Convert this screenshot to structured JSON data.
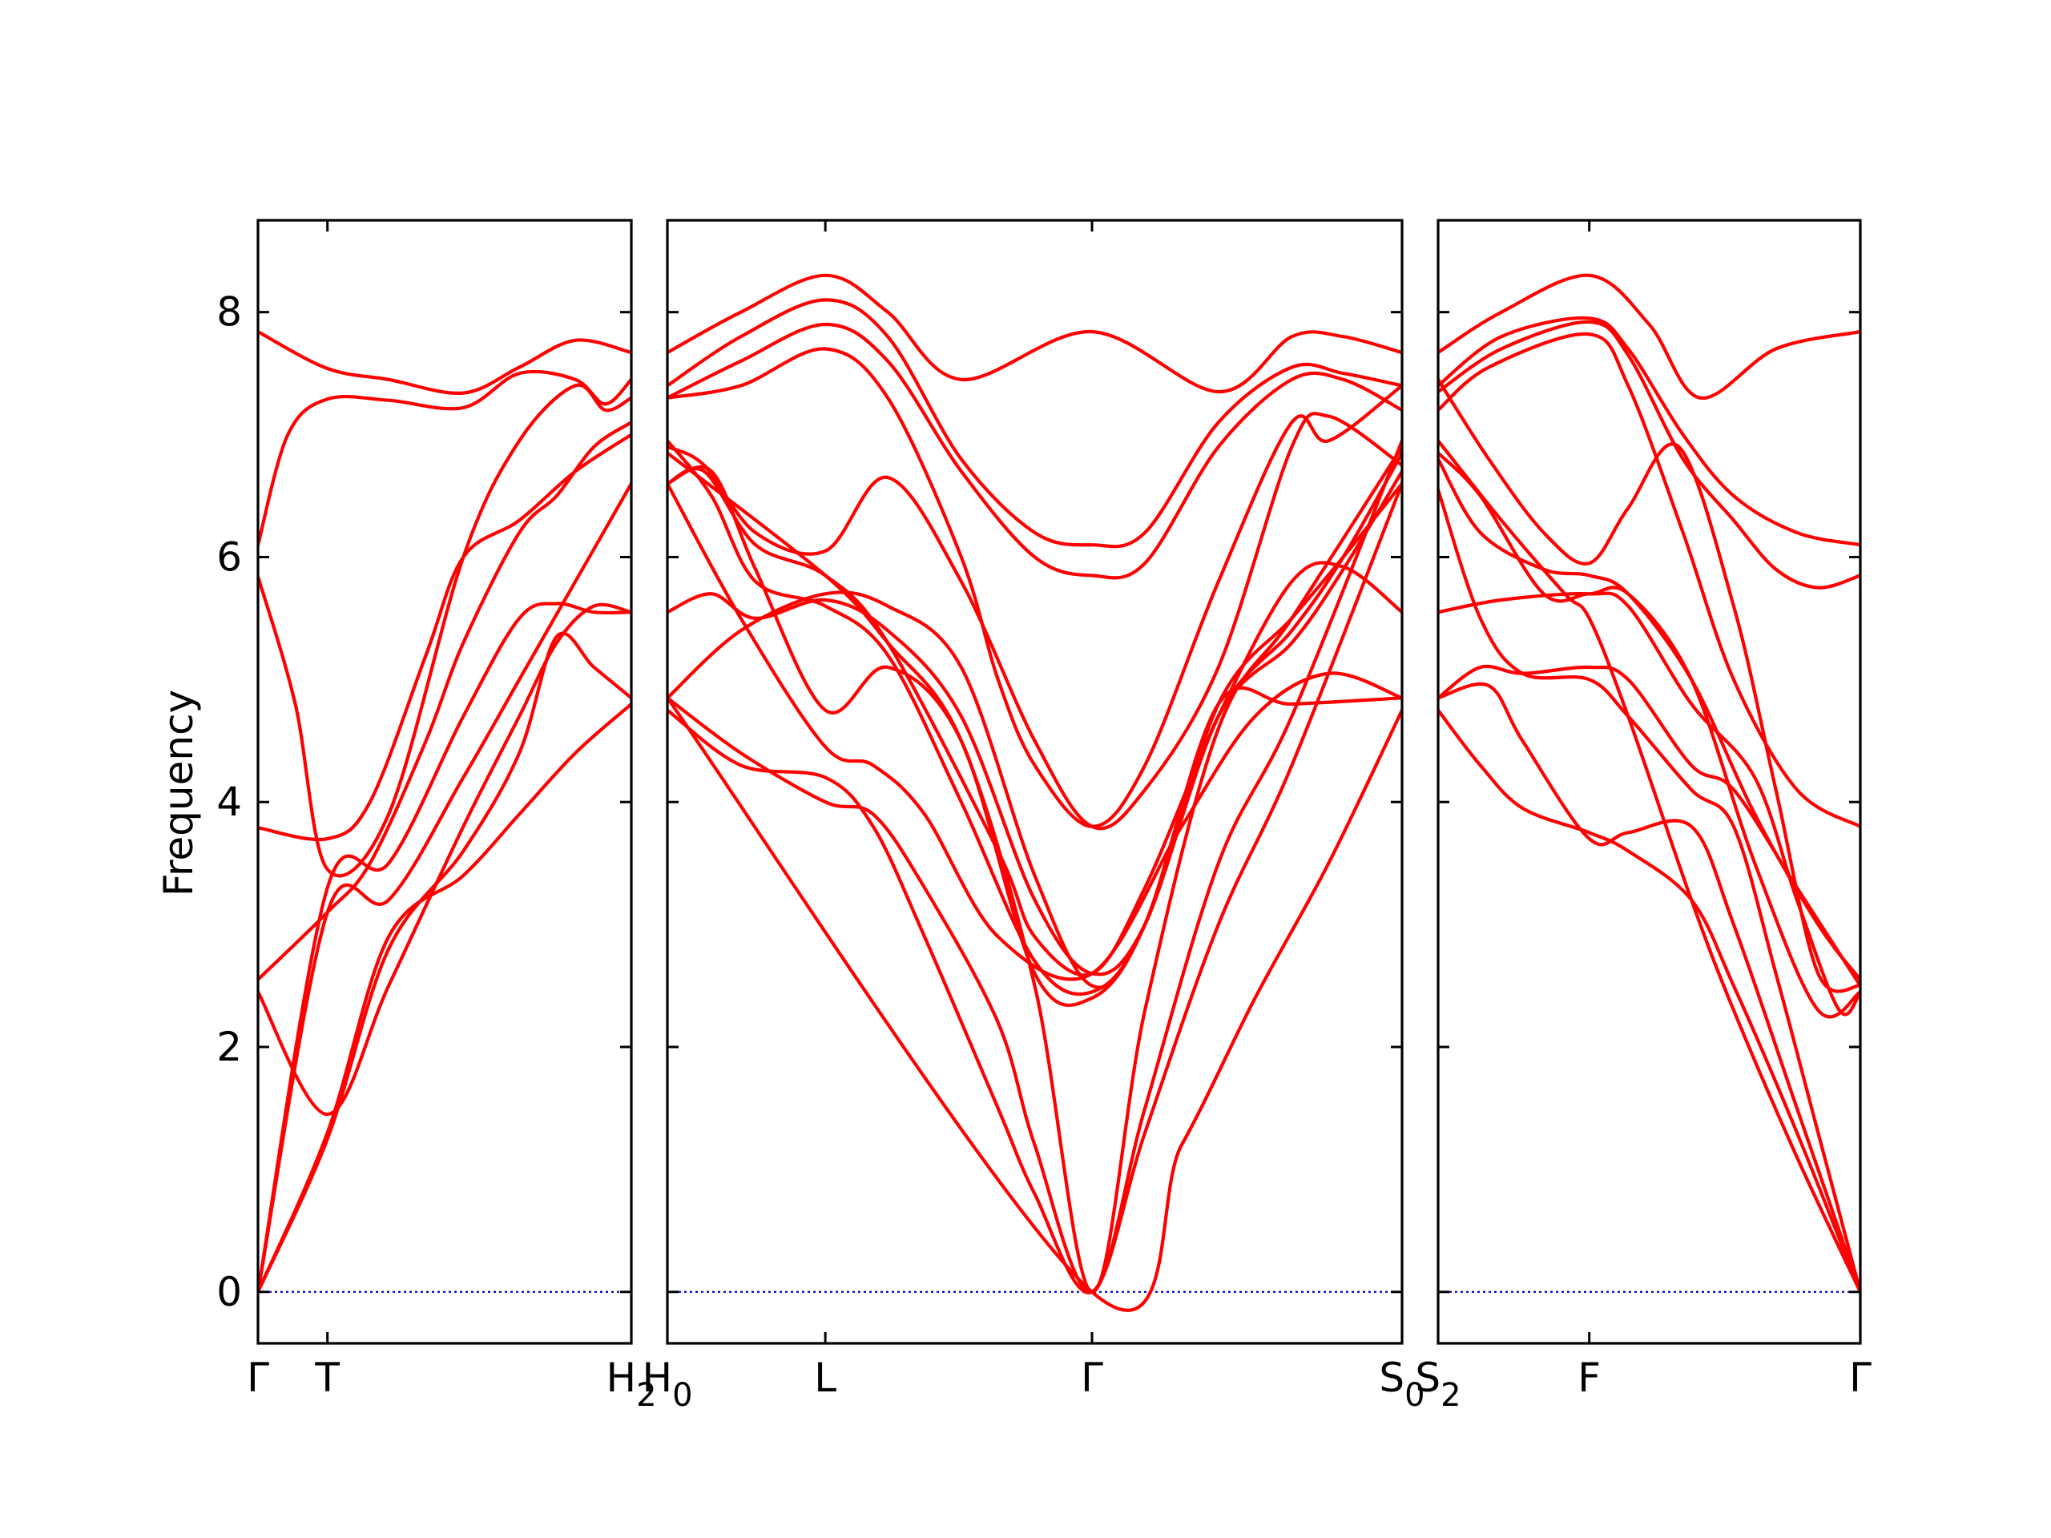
{
  "chart_data": {
    "type": "line",
    "ylabel": "Frequency",
    "ylim": [
      -0.42,
      8.75
    ],
    "yticks": [
      0,
      2,
      4,
      6,
      8
    ],
    "ytick_labels": [
      "0",
      "2",
      "4",
      "6",
      "8"
    ],
    "colors": {
      "bands": "#ff0000",
      "zero_line": "#0000cc",
      "frame": "#000000"
    },
    "zero_line": true,
    "panels": [
      {
        "id": "panel-1",
        "xlim": [
          0,
          1
        ],
        "ticks": [
          {
            "pos": 0,
            "base": "Γ",
            "sub": ""
          },
          {
            "pos": 0.186,
            "base": "T",
            "sub": ""
          },
          {
            "pos": 1,
            "base": "H",
            "sub": "2"
          }
        ],
        "series": [
          {
            "x": [
              0,
              0.186,
              0.35,
              0.55,
              0.7,
              0.85,
              1
            ],
            "y": [
              7.84,
              7.54,
              7.45,
              7.34,
              7.55,
              7.77,
              7.67
            ]
          },
          {
            "x": [
              0,
              0.08,
              0.186,
              0.35,
              0.55,
              0.7,
              0.85,
              0.93,
              1
            ],
            "y": [
              6.1,
              7.0,
              7.29,
              7.28,
              7.22,
              7.5,
              7.45,
              7.25,
              7.45
            ]
          },
          {
            "x": [
              0,
              0.1,
              0.186,
              0.35,
              0.55,
              0.7,
              0.85,
              0.93,
              1
            ],
            "y": [
              5.84,
              4.8,
              3.45,
              3.9,
              6.0,
              6.95,
              7.4,
              7.2,
              7.3
            ]
          },
          {
            "x": [
              0,
              0.186,
              0.3,
              0.45,
              0.55,
              0.7,
              0.85,
              1
            ],
            "y": [
              3.79,
              3.7,
              4.0,
              5.2,
              6.0,
              6.3,
              6.7,
              7.0
            ]
          },
          {
            "x": [
              0,
              0.186,
              0.3,
              0.45,
              0.55,
              0.7,
              0.8,
              0.9,
              1
            ],
            "y": [
              2.55,
              3.1,
              3.5,
              4.5,
              5.3,
              6.2,
              6.5,
              6.9,
              7.1
            ]
          },
          {
            "x": [
              0,
              0.186,
              0.35,
              0.55,
              0.7,
              0.8,
              0.9,
              1
            ],
            "y": [
              2.45,
              1.45,
              2.5,
              3.8,
              4.7,
              5.3,
              5.6,
              5.55
            ]
          },
          {
            "x": [
              0,
              0.186,
              0.35,
              0.55,
              0.7,
              0.8,
              0.9,
              1
            ],
            "y": [
              0,
              3.3,
              3.5,
              4.7,
              5.5,
              5.62,
              5.55,
              5.55
            ]
          },
          {
            "x": [
              0,
              0.186,
              0.35,
              0.55,
              0.7,
              0.8,
              0.9,
              1
            ],
            "y": [
              0,
              1.25,
              2.8,
              3.6,
              4.4,
              5.35,
              5.1,
              4.85
            ]
          },
          {
            "x": [
              0,
              0.186,
              0.35,
              0.55,
              0.7,
              0.85,
              1
            ],
            "y": [
              0,
              1.3,
              2.9,
              3.4,
              3.9,
              4.4,
              4.8
            ]
          },
          {
            "x": [
              0,
              0.186,
              0.35,
              0.55,
              0.7,
              0.85,
              1
            ],
            "y": [
              0,
              3.1,
              3.2,
              4.2,
              5.0,
              5.8,
              6.6
            ]
          }
        ]
      },
      {
        "id": "panel-2",
        "xlim": [
          0,
          1
        ],
        "ticks": [
          {
            "pos": 0,
            "base": "H",
            "sub": "0"
          },
          {
            "pos": 0.215,
            "base": "L",
            "sub": ""
          },
          {
            "pos": 0.578,
            "base": "Γ",
            "sub": ""
          },
          {
            "pos": 1,
            "base": "S",
            "sub": "0"
          }
        ],
        "series": [
          {
            "x": [
              0,
              0.1,
              0.215,
              0.3,
              0.4,
              0.578,
              0.75,
              0.85,
              0.92,
              1
            ],
            "y": [
              7.67,
              8.0,
              8.3,
              8.0,
              7.45,
              7.84,
              7.35,
              7.8,
              7.8,
              7.67
            ]
          },
          {
            "x": [
              0,
              0.1,
              0.215,
              0.3,
              0.4,
              0.5,
              0.578,
              0.65,
              0.75,
              0.85,
              0.92,
              1
            ],
            "y": [
              7.4,
              7.8,
              8.1,
              7.8,
              6.8,
              6.2,
              6.1,
              6.2,
              7.1,
              7.55,
              7.5,
              7.4
            ]
          },
          {
            "x": [
              0,
              0.1,
              0.215,
              0.3,
              0.4,
              0.5,
              0.578,
              0.65,
              0.75,
              0.85,
              0.92,
              1
            ],
            "y": [
              7.3,
              7.6,
              7.9,
              7.6,
              6.7,
              6.0,
              5.85,
              5.95,
              6.9,
              7.45,
              7.45,
              7.2
            ]
          },
          {
            "x": [
              0,
              0.1,
              0.215,
              0.3,
              0.4,
              0.45,
              0.5,
              0.578,
              0.65,
              0.75,
              0.85,
              0.9,
              1
            ],
            "y": [
              7.3,
              7.4,
              7.7,
              7.3,
              6.0,
              5.0,
              4.3,
              3.8,
              4.3,
              5.8,
              7.1,
              6.95,
              7.4
            ]
          },
          {
            "x": [
              0,
              0.05,
              0.12,
              0.215,
              0.3,
              0.4,
              0.5,
              0.578,
              0.65,
              0.75,
              0.85,
              0.9,
              1
            ],
            "y": [
              6.9,
              6.75,
              6.2,
              6.05,
              6.65,
              5.8,
              4.5,
              3.8,
              4.1,
              5.1,
              6.9,
              7.15,
              6.75
            ]
          },
          {
            "x": [
              0,
              0.05,
              0.12,
              0.215,
              0.3,
              0.45,
              0.5,
              0.578,
              0.65,
              0.75,
              0.85,
              0.92,
              1
            ],
            "y": [
              6.6,
              6.7,
              6.1,
              5.85,
              5.3,
              3.6,
              2.9,
              2.6,
              3.3,
              4.7,
              5.8,
              5.92,
              5.55
            ]
          },
          {
            "x": [
              0,
              0.06,
              0.12,
              0.215,
              0.3,
              0.4,
              0.5,
              0.578,
              0.65,
              0.75,
              0.85,
              0.92,
              1
            ],
            "y": [
              6.95,
              6.5,
              5.8,
              5.6,
              5.2,
              4.0,
              2.7,
              2.45,
              3.0,
              4.8,
              5.5,
              6.0,
              6.6
            ]
          },
          {
            "x": [
              0,
              0.06,
              0.12,
              0.215,
              0.3,
              0.4,
              0.5,
              0.578,
              0.65,
              0.75,
              0.85,
              0.92,
              1
            ],
            "y": [
              6.6,
              6.7,
              5.9,
              4.75,
              5.1,
              4.5,
              2.6,
              2.4,
              3.0,
              4.7,
              5.3,
              5.9,
              6.7
            ]
          },
          {
            "x": [
              0,
              0.06,
              0.12,
              0.215,
              0.3,
              0.4,
              0.5,
              0.578,
              0.65,
              0.75,
              0.85,
              0.92,
              1
            ],
            "y": [
              5.55,
              5.7,
              5.5,
              5.65,
              5.4,
              4.7,
              3.2,
              2.6,
              3.0,
              4.7,
              5.4,
              6.0,
              6.85
            ]
          },
          {
            "x": [
              0,
              0.1,
              0.215,
              0.3,
              0.4,
              0.5,
              0.578,
              0.65,
              0.75,
              0.85,
              1
            ],
            "y": [
              4.85,
              5.4,
              5.7,
              5.6,
              5.1,
              3.4,
              2.5,
              3.0,
              4.8,
              4.8,
              4.85
            ]
          },
          {
            "x": [
              0,
              0.1,
              0.215,
              0.28,
              0.35,
              0.45,
              0.578,
              0.7,
              0.8,
              0.9,
              1
            ],
            "y": [
              6.6,
              5.5,
              4.45,
              4.3,
              3.9,
              2.9,
              2.6,
              3.8,
              4.7,
              5.05,
              4.85
            ]
          },
          {
            "x": [
              0,
              0.1,
              0.215,
              0.28,
              0.35,
              0.45,
              0.5,
              0.578,
              0.65,
              0.75,
              0.85,
              1
            ],
            "y": [
              4.85,
              4.4,
              4.0,
              3.9,
              3.3,
              2.2,
              1.2,
              0,
              1.5,
              3.5,
              4.7,
              6.95
            ]
          },
          {
            "x": [
              0,
              0.1,
              0.215,
              0.28,
              0.35,
              0.45,
              0.5,
              0.578,
              0.65,
              0.75,
              0.85,
              1
            ],
            "y": [
              4.75,
              4.3,
              4.2,
              3.8,
              2.9,
              1.5,
              0.8,
              0,
              1.3,
              3.0,
              4.3,
              6.6
            ]
          },
          {
            "x": [
              0,
              0.215,
              0.3,
              0.4,
              0.5,
              0.578,
              0.65,
              0.75,
              0.85,
              1
            ],
            "y": [
              6.85,
              5.85,
              5.3,
              4.5,
              2.5,
              0,
              2.3,
              4.6,
              5.5,
              6.9
            ]
          },
          {
            "x": [
              0,
              0.578,
              0.7,
              0.8,
              0.9,
              1
            ],
            "y": [
              4.85,
              0,
              1.2,
              2.4,
              3.5,
              4.75
            ]
          }
        ]
      },
      {
        "id": "panel-3",
        "xlim": [
          0,
          1
        ],
        "ticks": [
          {
            "pos": 0,
            "base": "S",
            "sub": "2"
          },
          {
            "pos": 0.358,
            "base": "F",
            "sub": ""
          },
          {
            "pos": 1,
            "base": "Γ",
            "sub": ""
          }
        ],
        "series": [
          {
            "x": [
              0,
              0.15,
              0.358,
              0.5,
              0.62,
              0.8,
              1
            ],
            "y": [
              7.67,
              8.0,
              8.3,
              7.9,
              7.3,
              7.7,
              7.84
            ]
          },
          {
            "x": [
              0,
              0.15,
              0.358,
              0.45,
              0.58,
              0.7,
              0.85,
              1
            ],
            "y": [
              7.4,
              7.8,
              7.95,
              7.7,
              7.0,
              6.5,
              6.2,
              6.1
            ]
          },
          {
            "x": [
              0,
              0.15,
              0.358,
              0.45,
              0.58,
              0.7,
              0.8,
              0.9,
              1
            ],
            "y": [
              7.35,
              7.7,
              7.92,
              7.65,
              6.8,
              6.3,
              5.9,
              5.75,
              5.85
            ]
          },
          {
            "x": [
              0,
              0.12,
              0.358,
              0.45,
              0.58,
              0.7,
              0.85,
              1
            ],
            "y": [
              7.2,
              7.55,
              7.82,
              7.4,
              6.2,
              5.0,
              4.1,
              3.8
            ]
          },
          {
            "x": [
              0,
              0.12,
              0.25,
              0.358,
              0.45,
              0.57,
              0.7,
              0.8,
              0.9,
              1
            ],
            "y": [
              7.45,
              6.8,
              6.2,
              5.95,
              6.4,
              6.9,
              5.6,
              4.1,
              2.6,
              2.5
            ]
          },
          {
            "x": [
              0,
              0.1,
              0.25,
              0.358,
              0.45,
              0.6,
              0.75,
              0.9,
              1
            ],
            "y": [
              6.8,
              6.2,
              5.9,
              5.85,
              5.7,
              5.0,
              3.9,
              3.0,
              2.55
            ]
          },
          {
            "x": [
              0,
              0.1,
              0.25,
              0.358,
              0.45,
              0.6,
              0.75,
              0.9,
              1
            ],
            "y": [
              6.85,
              6.5,
              5.7,
              5.7,
              5.7,
              5.0,
              3.5,
              2.3,
              2.45
            ]
          },
          {
            "x": [
              0,
              0.15,
              0.358,
              0.45,
              0.6,
              0.75,
              0.85,
              0.95,
              1
            ],
            "y": [
              5.55,
              5.65,
              5.7,
              5.6,
              4.8,
              4.2,
              3.2,
              2.3,
              2.45
            ]
          },
          {
            "x": [
              0,
              0.1,
              0.2,
              0.358,
              0.45,
              0.6,
              0.7,
              0.85,
              1
            ],
            "y": [
              4.85,
              5.1,
              5.05,
              5.1,
              5.0,
              4.3,
              4.1,
              3.3,
              2.5
            ]
          },
          {
            "x": [
              0,
              0.1,
              0.2,
              0.358,
              0.45,
              0.6,
              0.7,
              0.8,
              0.9,
              1
            ],
            "y": [
              6.55,
              5.5,
              5.05,
              5.0,
              4.7,
              4.1,
              3.8,
              2.6,
              1.3,
              0
            ]
          },
          {
            "x": [
              0,
              0.12,
              0.2,
              0.358,
              0.45,
              0.6,
              0.7,
              0.85,
              1
            ],
            "y": [
              4.85,
              4.95,
              4.5,
              3.7,
              3.75,
              3.8,
              3.0,
              1.5,
              0
            ]
          },
          {
            "x": [
              0,
              0.1,
              0.2,
              0.358,
              0.45,
              0.6,
              0.7,
              0.85,
              1
            ],
            "y": [
              4.75,
              4.3,
              3.95,
              3.75,
              3.6,
              3.2,
              2.5,
              1.3,
              0
            ]
          },
          {
            "x": [
              0,
              0.15,
              0.3,
              0.358,
              0.45,
              0.6,
              0.7,
              0.85,
              1
            ],
            "y": [
              6.95,
              6.3,
              5.7,
              5.5,
              4.7,
              3.2,
              2.3,
              1.1,
              0
            ]
          }
        ]
      }
    ]
  }
}
